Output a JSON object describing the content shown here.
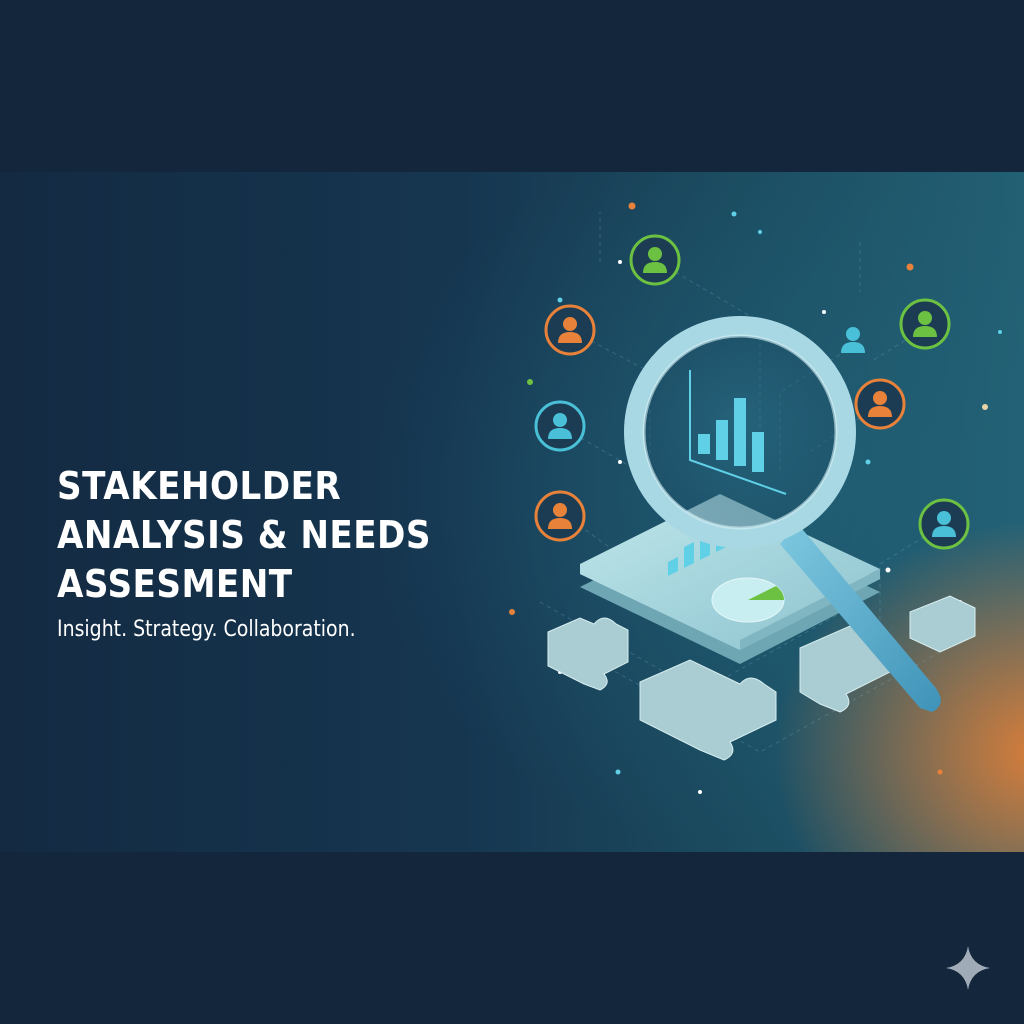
{
  "title_lines": [
    "STAKEHOLDER",
    "ANALYSIS & NEEDS",
    "ASSESMENT"
  ],
  "tagline": "Insight. Strategy. Collaboration.",
  "colors": {
    "background": "#13263c",
    "accent_orange": "#e8823a",
    "accent_green": "#6dc142",
    "accent_teal": "#4ac0d8",
    "text": "#ffffff"
  },
  "icons": [
    "stakeholder-person-icon",
    "magnifying-glass-icon",
    "bar-chart-icon",
    "pie-chart-icon",
    "puzzle-piece-icon",
    "sparkle-icon"
  ]
}
